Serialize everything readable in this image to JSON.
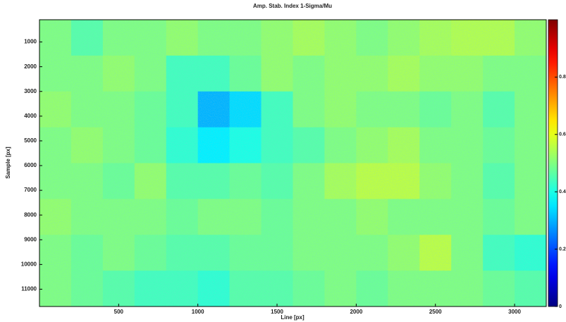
{
  "chart_data": {
    "type": "heatmap",
    "title": "Amp. Stab. Index 1-Sigma/Mu",
    "xlabel": "Line [px]",
    "ylabel": "Sample [px]",
    "x": [
      100,
      300,
      500,
      700,
      900,
      1100,
      1300,
      1500,
      1700,
      1900,
      2100,
      2300,
      2500,
      2700,
      2900,
      3100
    ],
    "y": [
      825,
      2275,
      3725,
      5175,
      6625,
      8075,
      9525,
      10975
    ],
    "z": [
      [
        0.5,
        0.46,
        0.5,
        0.5,
        0.52,
        0.5,
        0.5,
        0.52,
        0.54,
        0.52,
        0.5,
        0.52,
        0.54,
        0.55,
        0.55,
        0.52
      ],
      [
        0.5,
        0.5,
        0.52,
        0.5,
        0.44,
        0.44,
        0.48,
        0.52,
        0.5,
        0.52,
        0.52,
        0.54,
        0.52,
        0.52,
        0.5,
        0.5
      ],
      [
        0.52,
        0.5,
        0.5,
        0.48,
        0.44,
        0.3,
        0.34,
        0.44,
        0.5,
        0.52,
        0.5,
        0.5,
        0.48,
        0.5,
        0.46,
        0.5
      ],
      [
        0.5,
        0.52,
        0.5,
        0.48,
        0.42,
        0.36,
        0.4,
        0.44,
        0.46,
        0.5,
        0.52,
        0.54,
        0.5,
        0.5,
        0.48,
        0.5
      ],
      [
        0.5,
        0.5,
        0.48,
        0.52,
        0.46,
        0.46,
        0.48,
        0.46,
        0.5,
        0.54,
        0.56,
        0.56,
        0.52,
        0.5,
        0.46,
        0.5
      ],
      [
        0.52,
        0.5,
        0.5,
        0.5,
        0.48,
        0.5,
        0.5,
        0.48,
        0.5,
        0.5,
        0.52,
        0.5,
        0.5,
        0.5,
        0.48,
        0.5
      ],
      [
        0.5,
        0.48,
        0.5,
        0.48,
        0.46,
        0.46,
        0.48,
        0.48,
        0.5,
        0.5,
        0.5,
        0.52,
        0.56,
        0.5,
        0.44,
        0.42
      ],
      [
        0.5,
        0.48,
        0.46,
        0.44,
        0.44,
        0.42,
        0.46,
        0.46,
        0.48,
        0.5,
        0.48,
        0.5,
        0.5,
        0.5,
        0.48,
        0.46
      ]
    ],
    "xlim": [
      0,
      3200
    ],
    "xticks": [
      500,
      1000,
      1500,
      2000,
      2500,
      3000
    ],
    "ylim": [
      11700,
      100
    ],
    "yticks": [
      1000,
      2000,
      3000,
      4000,
      5000,
      6000,
      7000,
      8000,
      9000,
      10000,
      11000
    ],
    "colormap": "jet",
    "clim": [
      0,
      1
    ],
    "cticks": [
      0,
      0.2,
      0.4,
      0.6,
      0.8
    ]
  }
}
